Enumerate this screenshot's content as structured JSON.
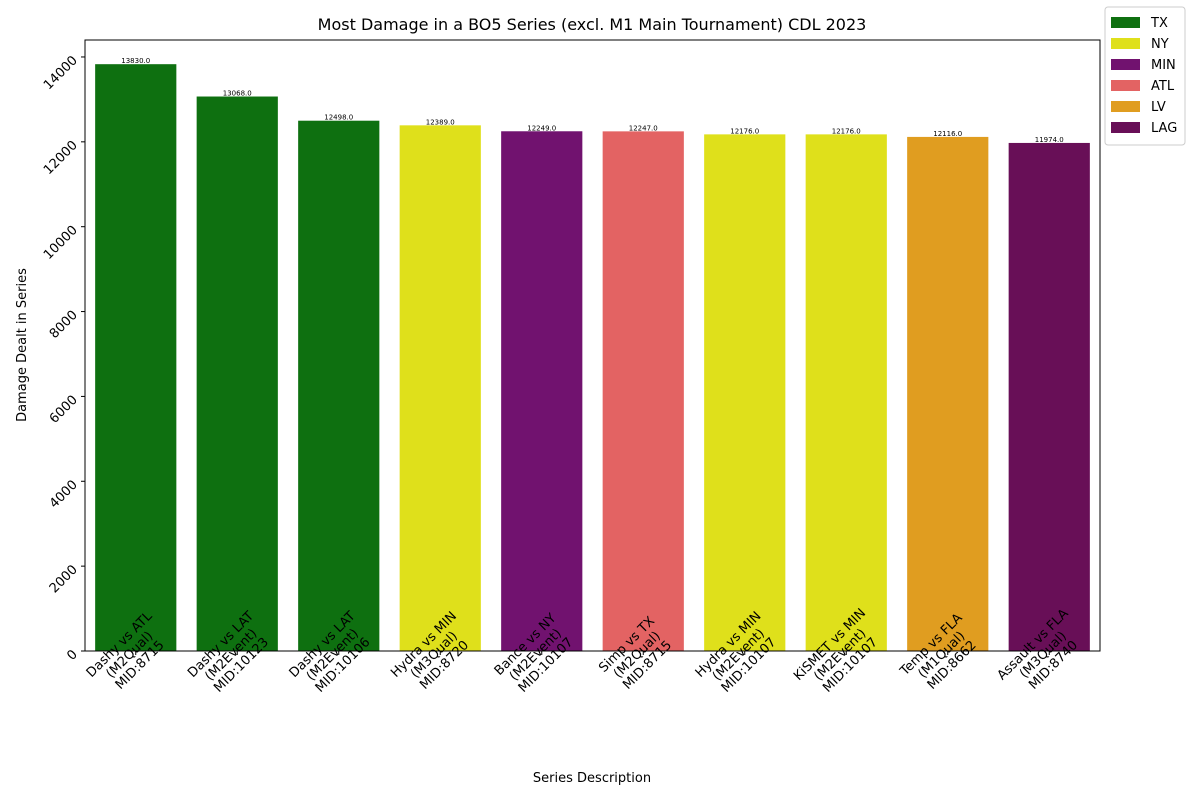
{
  "chart_data": {
    "type": "bar",
    "title": "Most Damage in a BO5 Series (excl. M1 Main Tournament) CDL 2023",
    "xlabel": "Series Description",
    "ylabel": "Damage Dealt in Series",
    "ylim": [
      0,
      14400
    ],
    "yticks": [
      0,
      2000,
      4000,
      6000,
      8000,
      10000,
      12000,
      14000
    ],
    "grid": false,
    "legend_position": "outside-top-right",
    "legend": [
      {
        "label": "TX",
        "color": "#0e7010"
      },
      {
        "label": "NY",
        "color": "#dfe01b"
      },
      {
        "label": "MIN",
        "color": "#71126f"
      },
      {
        "label": "ATL",
        "color": "#e36363"
      },
      {
        "label": "LV",
        "color": "#e09d20"
      },
      {
        "label": "LAG",
        "color": "#680f57"
      }
    ],
    "bars": [
      {
        "label": [
          "Dashy vs ATL",
          "(M2Qual)",
          "MID:8715"
        ],
        "value": 13830.0,
        "value_label": "13830.0",
        "team": "TX",
        "color": "#0e7010"
      },
      {
        "label": [
          "Dashy vs LAT",
          "(M2Event)",
          "MID:10123"
        ],
        "value": 13068.0,
        "value_label": "13068.0",
        "team": "TX",
        "color": "#0e7010"
      },
      {
        "label": [
          "Dashy vs LAT",
          "(M2Event)",
          "MID:10106"
        ],
        "value": 12498.0,
        "value_label": "12498.0",
        "team": "TX",
        "color": "#0e7010"
      },
      {
        "label": [
          "Hydra vs MIN",
          "(M3Qual)",
          "MID:8720"
        ],
        "value": 12389.0,
        "value_label": "12389.0",
        "team": "NY",
        "color": "#dfe01b"
      },
      {
        "label": [
          "Bance vs NY",
          "(M2Event)",
          "MID:10107"
        ],
        "value": 12249.0,
        "value_label": "12249.0",
        "team": "MIN",
        "color": "#71126f"
      },
      {
        "label": [
          "Simp vs TX",
          "(M2Qual)",
          "MID:8715"
        ],
        "value": 12247.0,
        "value_label": "12247.0",
        "team": "ATL",
        "color": "#e36363"
      },
      {
        "label": [
          "Hydra vs MIN",
          "(M2Event)",
          "MID:10107"
        ],
        "value": 12176.0,
        "value_label": "12176.0",
        "team": "NY",
        "color": "#dfe01b"
      },
      {
        "label": [
          "KiSMET vs MIN",
          "(M2Event)",
          "MID:10107"
        ],
        "value": 12176.0,
        "value_label": "12176.0",
        "team": "NY",
        "color": "#dfe01b"
      },
      {
        "label": [
          "Temp vs FLA",
          "(M1Qual)",
          "MID:8662"
        ],
        "value": 12116.0,
        "value_label": "12116.0",
        "team": "LV",
        "color": "#e09d20"
      },
      {
        "label": [
          "Assault vs FLA",
          "(M3Qual)",
          "MID:8740"
        ],
        "value": 11974.0,
        "value_label": "11974.0",
        "team": "LAG",
        "color": "#680f57"
      }
    ]
  }
}
